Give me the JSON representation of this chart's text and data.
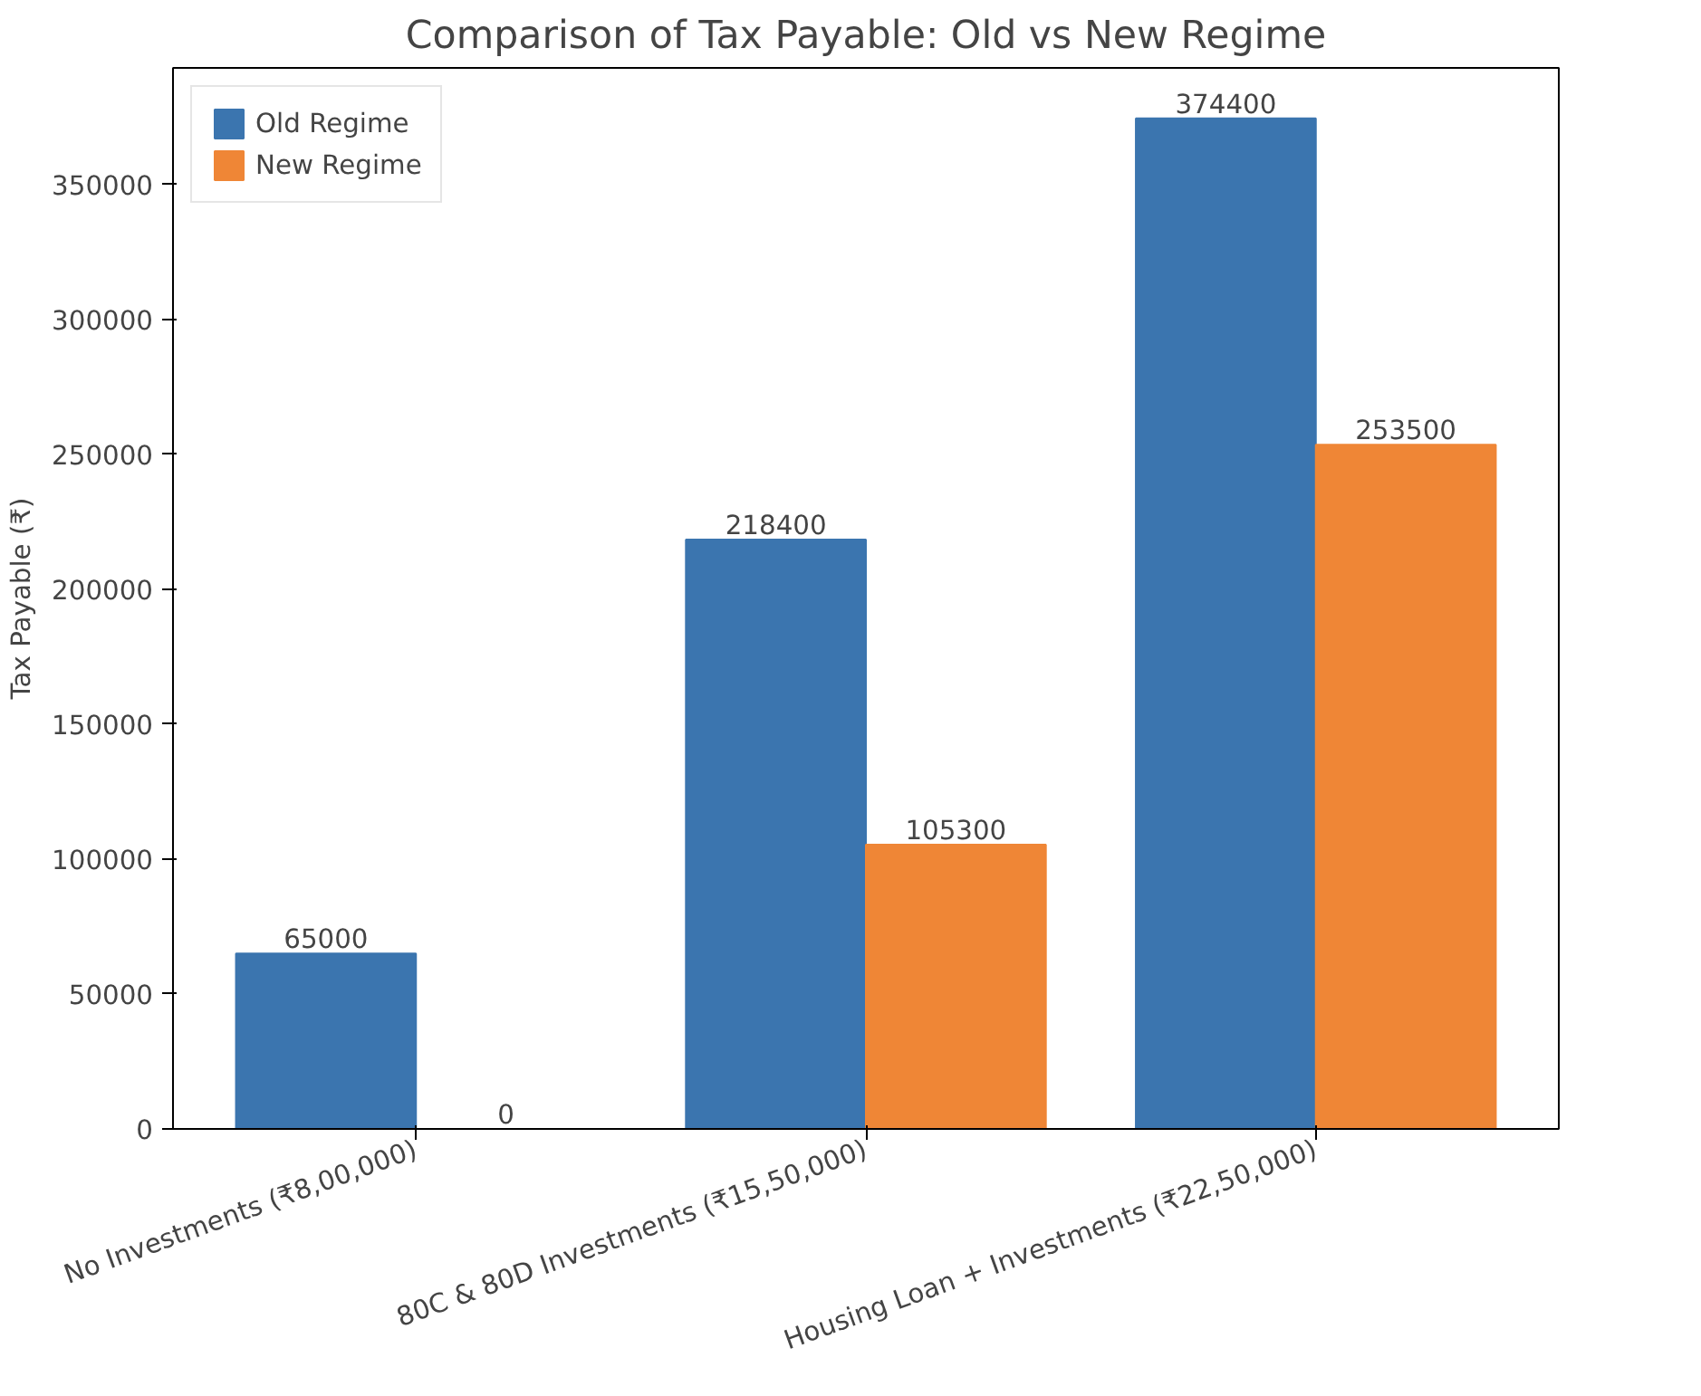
{
  "chart_data": {
    "type": "bar",
    "title": "Comparison of Tax Payable: Old vs New Regime",
    "ylabel": "Tax Payable (₹)",
    "categories": [
      "No Investments (₹8,00,000)",
      "80C & 80D Investments (₹15,50,000)",
      "Housing Loan + Investments (₹22,50,000)"
    ],
    "series": [
      {
        "name": "Old Regime",
        "color": "#3b75af",
        "values": [
          65000,
          218400,
          374400
        ]
      },
      {
        "name": "New Regime",
        "color": "#ef8636",
        "values": [
          0,
          105300,
          253500
        ]
      }
    ],
    "ylim": [
      0,
      393120
    ],
    "yticks": [
      0,
      50000,
      100000,
      150000,
      200000,
      250000,
      300000,
      350000
    ],
    "data_labels": true,
    "legend": "top left",
    "grid": false
  }
}
